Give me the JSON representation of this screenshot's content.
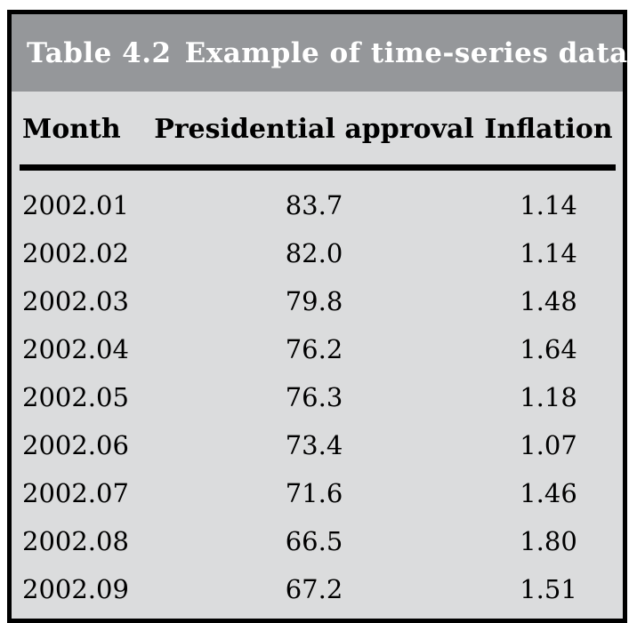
{
  "table": {
    "title_label": "Table 4.2",
    "title_text": "Example of time-series data"
  },
  "colors": {
    "title_bar_bg": "#95979a",
    "body_bg": "#dbdcdd",
    "frame_border": "#000000",
    "title_text_color": "#ffffff",
    "text_color": "#000000"
  },
  "chart_data": {
    "type": "table",
    "title": "Table 4.2 Example of time-series data",
    "columns": [
      "Month",
      "Presidential approval",
      "Inflation"
    ],
    "rows": [
      [
        "2002.01",
        "83.7",
        "1.14"
      ],
      [
        "2002.02",
        "82.0",
        "1.14"
      ],
      [
        "2002.03",
        "79.8",
        "1.48"
      ],
      [
        "2002.04",
        "76.2",
        "1.64"
      ],
      [
        "2002.05",
        "76.3",
        "1.18"
      ],
      [
        "2002.06",
        "73.4",
        "1.07"
      ],
      [
        "2002.07",
        "71.6",
        "1.46"
      ],
      [
        "2002.08",
        "66.5",
        "1.80"
      ],
      [
        "2002.09",
        "67.2",
        "1.51"
      ]
    ],
    "layout": {
      "header_rule": true,
      "grid": false,
      "col_alignment": [
        "left",
        "center",
        "center"
      ]
    }
  }
}
